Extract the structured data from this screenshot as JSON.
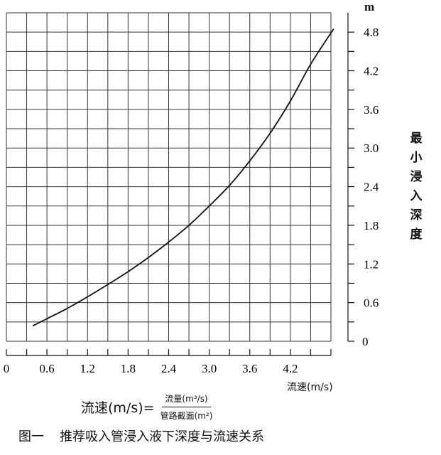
{
  "chart_data": {
    "type": "line",
    "ylabel": "最小浸入深度",
    "yunit": "m",
    "xlabel": "流速(m/s)",
    "xlim": [
      0,
      4.8
    ],
    "ylim": [
      0,
      5.1
    ],
    "x_minor_step": 0.3,
    "y_minor_step": 0.3,
    "grid": true,
    "x_ticks": [
      "0",
      "0.6",
      "1.2",
      "1.8",
      "2.4",
      "3.0",
      "3.6",
      "4.2"
    ],
    "y_ticks": [
      "0",
      "0.6",
      "1.2",
      "1.8",
      "2.4",
      "3.0",
      "3.6",
      "4.2",
      "4.8"
    ],
    "series": [
      {
        "x": [
          0.39,
          0.6,
          0.9,
          1.2,
          1.5,
          1.8,
          2.1,
          2.4,
          2.7,
          3.0,
          3.3,
          3.6,
          3.9,
          4.2,
          4.5,
          4.84
        ],
        "y": [
          0.24,
          0.35,
          0.51,
          0.69,
          0.88,
          1.08,
          1.3,
          1.54,
          1.8,
          2.1,
          2.42,
          2.8,
          3.23,
          3.73,
          4.3,
          4.85
        ]
      }
    ],
    "line_color": "#111111"
  },
  "formula": {
    "lhs": "流速(m/s)=",
    "numerator": "流量(m³/s)",
    "denominator": "管路截面(m²)"
  },
  "caption": {
    "number": "图一",
    "text": "推荐吸入管浸入液下深度与流速关系"
  }
}
